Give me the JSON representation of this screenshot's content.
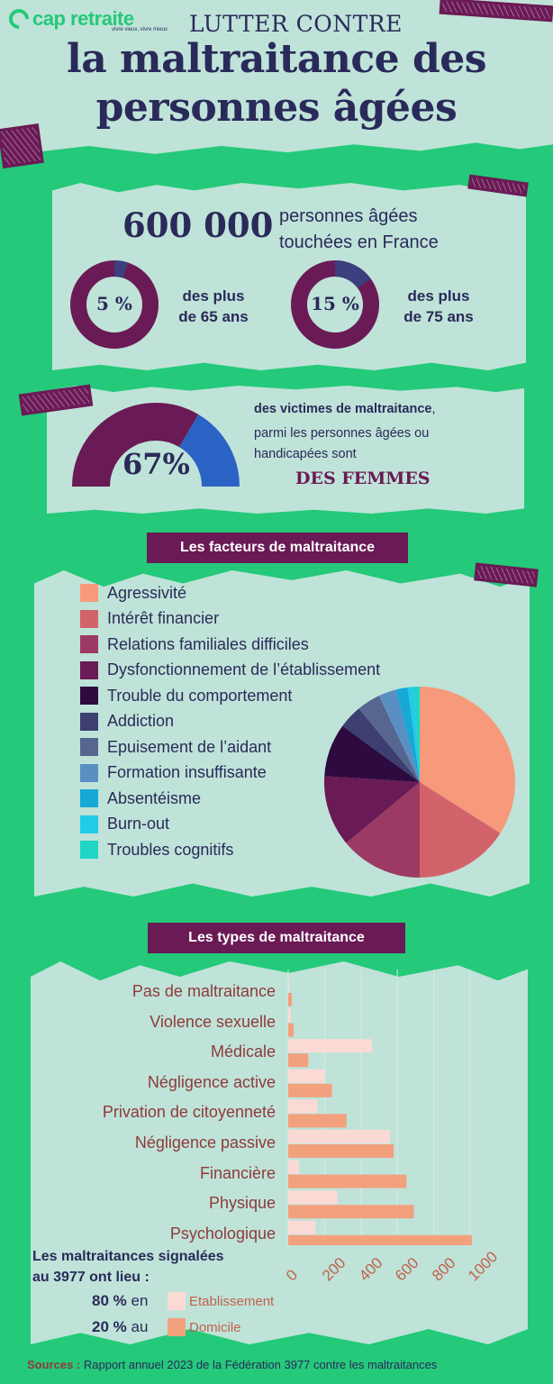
{
  "header": {
    "logo": "cap retraite",
    "logo_tagline": "vivre vieux, vivre mieux",
    "title_line1": "LUTTER CONTRE",
    "title_line2": "la maltraitance des",
    "title_line3": "personnes âgées"
  },
  "stats": {
    "big_number": "600 000",
    "big_caption_1": "personnes âgées",
    "big_caption_2": "touchées en France",
    "rings": [
      {
        "label": "5 %",
        "caption_1": "des plus",
        "caption_2": "de 65 ans",
        "value": 5
      },
      {
        "label": "15 %",
        "caption_1": "des plus",
        "caption_2": "de 75 ans",
        "value": 15
      }
    ]
  },
  "women": {
    "label": "67%",
    "value": 67,
    "text_bold": "des victimes de maltraitance",
    "text_comma": ",",
    "text_1": "parmi les personnes âgées ou",
    "text_2": "handicapées sont",
    "highlight": "DES FEMMES"
  },
  "factors_title": "Les facteurs de maltraitance",
  "types_title": "Les types de maltraitance",
  "colors": {
    "background": "#24c97a",
    "panel": "#bfe3d8",
    "ring_main": "#6a1a55",
    "ring_accent": "#3b3f7e",
    "women_accent": "#2b63c4",
    "etablissement": "#fbdad6",
    "domicile": "#f3a07d"
  },
  "chart_data": [
    {
      "type": "pie",
      "labels": [
        "Agressivité",
        "Intérêt financier",
        "Relations familiales difficiles",
        "Dysfonctionnement de l’établissement",
        "Trouble du comportement",
        "Addiction",
        "Epuisement de l’aidant",
        "Formation insuffisante",
        "Absentéisme",
        "Burn-out",
        "Troubles cognitifs"
      ],
      "values": [
        34,
        16,
        14,
        12,
        9,
        4,
        4,
        3,
        2,
        1,
        1
      ],
      "colors": [
        "#f69a7b",
        "#d2636b",
        "#9c3a64",
        "#6a1a55",
        "#2d0a40",
        "#3c3f6f",
        "#56668f",
        "#5a8fc4",
        "#17a8d6",
        "#22cbe6",
        "#1ed5c6"
      ]
    },
    {
      "type": "bar",
      "orientation": "horizontal",
      "categories": [
        "Pas de maltraitance",
        "Violence sexuelle",
        "Médicale",
        "Négligence active",
        "Privation de citoyenneté",
        "Négligence passive",
        "Financière",
        "Physique",
        "Psychologique"
      ],
      "series": [
        {
          "name": "Etablissement",
          "values": [
            5,
            15,
            460,
            200,
            160,
            560,
            60,
            270,
            150
          ]
        },
        {
          "name": "Domicile",
          "values": [
            20,
            30,
            110,
            240,
            320,
            580,
            650,
            690,
            1010
          ]
        }
      ],
      "xticks": [
        "0",
        "200",
        "400",
        "600",
        "800",
        "1000"
      ],
      "xlim": [
        0,
        1000
      ]
    }
  ],
  "location_note": {
    "title_1": "Les maltraitances signalées",
    "title_2": "au 3977 ont lieu :",
    "items": [
      {
        "pct": "80 %",
        "word": "en",
        "label": "Etablissement"
      },
      {
        "pct": "20 %",
        "word": "au",
        "label": "Domicile"
      }
    ]
  },
  "sources": {
    "label": "Sources :",
    "text": "Rapport annuel 2023 de la Fédération 3977 contre les maltraitances"
  }
}
